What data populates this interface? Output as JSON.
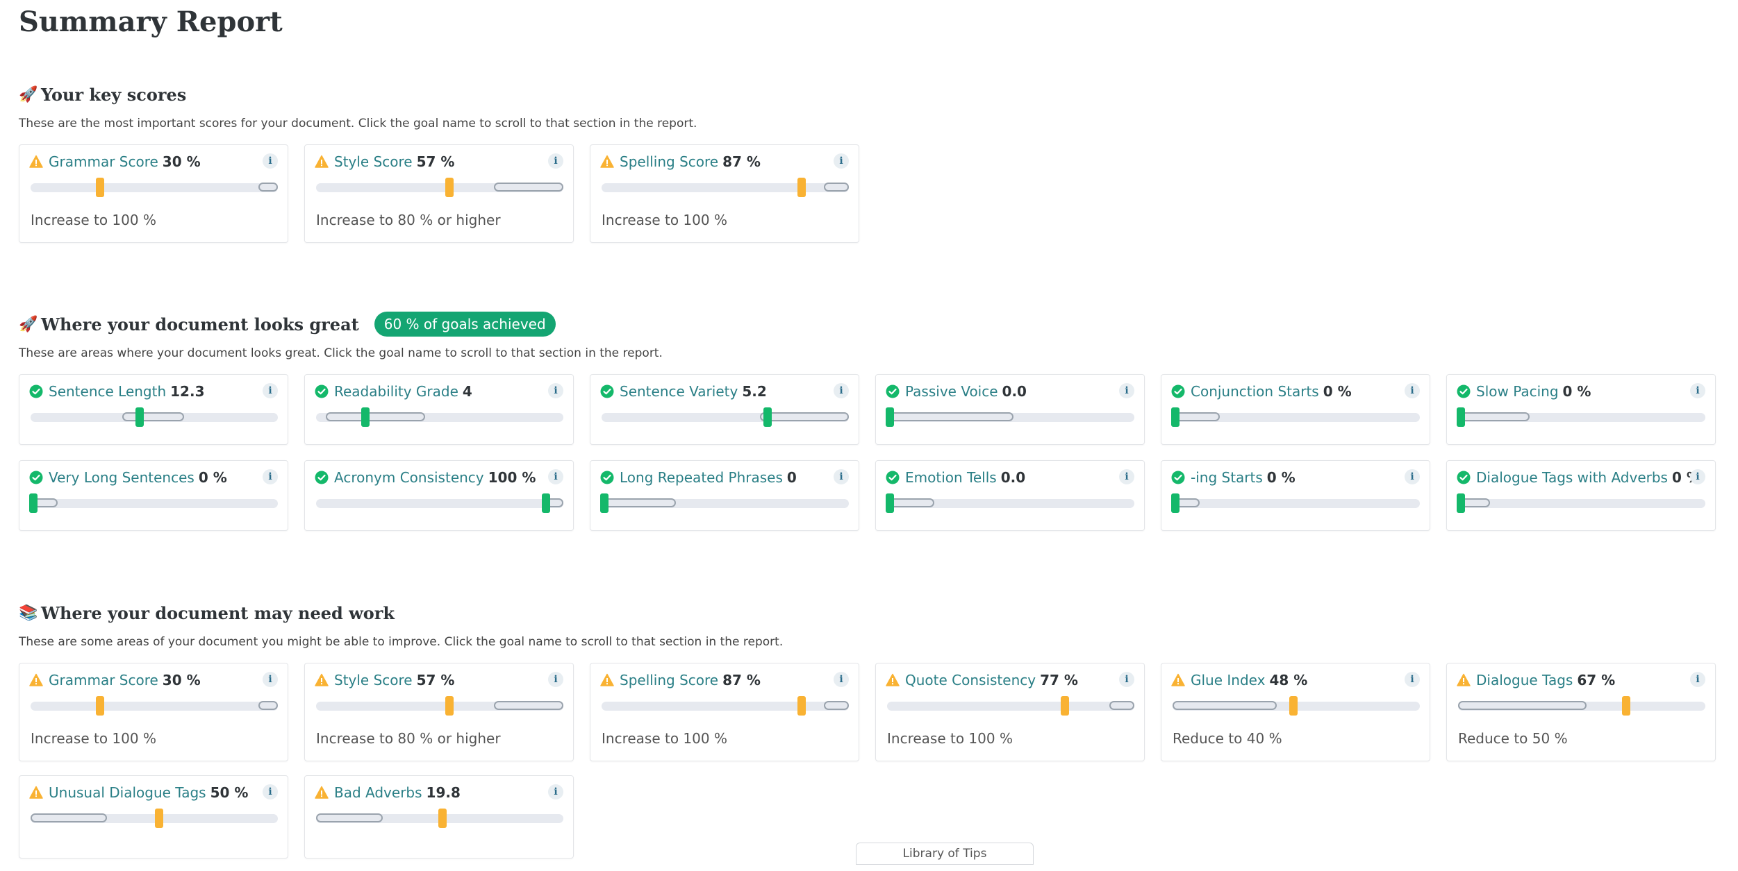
{
  "title": "Summary Report",
  "sections": [
    {
      "emoji": "🚀",
      "title": "Your key scores",
      "badge": "",
      "description": "These are the most important scores for your document. Click the goal name to scroll to that section in the report.",
      "cards": [
        {
          "status": "warning",
          "name": "Grammar Score",
          "value": "30 %",
          "target": "Increase to 100 %",
          "position": 0.28,
          "range": [
            0.92,
            1.0
          ]
        },
        {
          "status": "warning",
          "name": "Style Score",
          "value": "57 %",
          "target": "Increase to 80 % or higher",
          "position": 0.54,
          "range": [
            0.72,
            1.0
          ]
        },
        {
          "status": "warning",
          "name": "Spelling Score",
          "value": "87 %",
          "target": "Increase to 100 %",
          "position": 0.81,
          "range": [
            0.9,
            1.0
          ]
        }
      ]
    },
    {
      "emoji": "🚀",
      "title": "Where your document looks great",
      "badge": "60 % of goals achieved",
      "description": "These are areas where your document looks great. Click the goal name to scroll to that section in the report.",
      "cards": [
        {
          "status": "ok",
          "name": "Sentence Length",
          "value": "12.3",
          "target": "",
          "position": 0.44,
          "range": [
            0.37,
            0.62
          ]
        },
        {
          "status": "ok",
          "name": "Readability Grade",
          "value": "4",
          "target": "",
          "position": 0.2,
          "range": [
            0.04,
            0.44
          ]
        },
        {
          "status": "ok",
          "name": "Sentence Variety",
          "value": "5.2",
          "target": "",
          "position": 0.67,
          "range": [
            0.64,
            1.0
          ]
        },
        {
          "status": "ok",
          "name": "Passive Voice",
          "value": "0.0",
          "target": "",
          "position": 0.01,
          "range": [
            0.0,
            0.51
          ]
        },
        {
          "status": "ok",
          "name": "Conjunction Starts",
          "value": "0 %",
          "target": "",
          "position": 0.01,
          "range": [
            0.0,
            0.19
          ]
        },
        {
          "status": "ok",
          "name": "Slow Pacing",
          "value": "0 %",
          "target": "",
          "position": 0.01,
          "range": [
            0.0,
            0.29
          ]
        },
        {
          "status": "ok",
          "name": "Very Long Sentences",
          "value": "0 %",
          "target": "",
          "position": 0.01,
          "range": [
            0.0,
            0.11
          ]
        },
        {
          "status": "ok",
          "name": "Acronym Consistency",
          "value": "100 %",
          "target": "",
          "position": 0.93,
          "range": [
            0.93,
            1.0
          ]
        },
        {
          "status": "ok",
          "name": "Long Repeated Phrases",
          "value": "0",
          "target": "",
          "position": 0.01,
          "range": [
            0.0,
            0.3
          ]
        },
        {
          "status": "ok",
          "name": "Emotion Tells",
          "value": "0.0",
          "target": "",
          "position": 0.01,
          "range": [
            0.0,
            0.19
          ]
        },
        {
          "status": "ok",
          "name": "-ing Starts",
          "value": "0 %",
          "target": "",
          "position": 0.01,
          "range": [
            0.0,
            0.11
          ]
        },
        {
          "status": "ok",
          "name": "Dialogue Tags with Adverbs",
          "value": "0 %",
          "target": "",
          "position": 0.01,
          "range": [
            0.0,
            0.13
          ]
        }
      ]
    },
    {
      "emoji": "📚",
      "title": "Where your document may need work",
      "badge": "",
      "description": "These are some areas of your document you might be able to improve. Click the goal name to scroll to that section in the report.",
      "cards": [
        {
          "status": "warning",
          "name": "Grammar Score",
          "value": "30 %",
          "target": "Increase to 100 %",
          "position": 0.28,
          "range": [
            0.92,
            1.0
          ]
        },
        {
          "status": "warning",
          "name": "Style Score",
          "value": "57 %",
          "target": "Increase to 80 % or higher",
          "position": 0.54,
          "range": [
            0.72,
            1.0
          ]
        },
        {
          "status": "warning",
          "name": "Spelling Score",
          "value": "87 %",
          "target": "Increase to 100 %",
          "position": 0.81,
          "range": [
            0.9,
            1.0
          ]
        },
        {
          "status": "warning",
          "name": "Quote Consistency",
          "value": "77 %",
          "target": "Increase to 100 %",
          "position": 0.72,
          "range": [
            0.9,
            1.0
          ]
        },
        {
          "status": "warning",
          "name": "Glue Index",
          "value": "48 %",
          "target": "Reduce to 40 %",
          "position": 0.49,
          "range": [
            0.0,
            0.42
          ]
        },
        {
          "status": "warning",
          "name": "Dialogue Tags",
          "value": "67 %",
          "target": "Reduce to 50 %",
          "position": 0.68,
          "range": [
            0.0,
            0.52
          ]
        },
        {
          "status": "warning",
          "name": "Unusual Dialogue Tags",
          "value": "50 %",
          "target": "",
          "position": 0.52,
          "range": [
            0.0,
            0.31
          ]
        },
        {
          "status": "warning",
          "name": "Bad Adverbs",
          "value": "19.8",
          "target": "",
          "position": 0.51,
          "range": [
            0.0,
            0.27
          ]
        }
      ]
    }
  ],
  "bottom_tab": "Library of Tips"
}
